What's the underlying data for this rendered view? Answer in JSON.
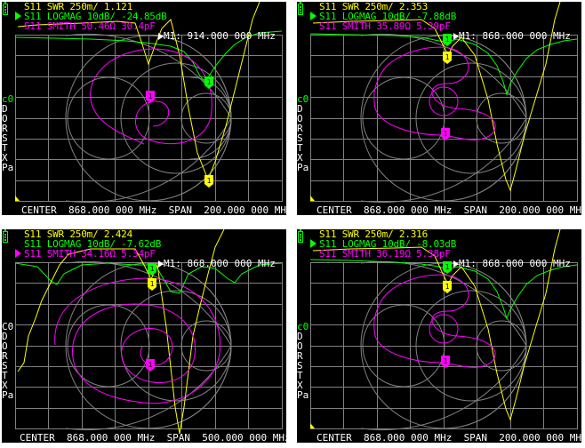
{
  "screens": [
    {
      "id": "top-left",
      "trace_swr": "S11 SWR 250m/ 1.121",
      "trace_logmag": "S11 LOGMAG 10dB/ -24.85dB",
      "trace_smith": "S11 SMITH 50.46Ω 30.4pF",
      "marker_readout": "M1: 914.000 000 MHz",
      "footer": "CENTER  868.000 000 MHz  SPAN  200.000 000 MHz",
      "sidebar": [
        "c0",
        "D",
        "O",
        "R",
        "S",
        "T",
        "X",
        "Pa"
      ],
      "marker_label": "1"
    },
    {
      "id": "top-right",
      "trace_swr": "S11 SWR 250m/ 2.353",
      "trace_logmag": "S11 LOGMAG 10dB/ -7.88dB",
      "trace_smith": "S11 SMITH 35.89Ω 5.39pF",
      "marker_readout": "M1: 868.000 000 MHz",
      "footer": "CENTER  868.000 000 MHz  SPAN  200.000 000 MHz",
      "sidebar": [
        "c0",
        "D",
        "O",
        "R",
        "S",
        "T",
        "X",
        "Pa"
      ],
      "marker_label": "1"
    },
    {
      "id": "bottom-left",
      "trace_swr": "S11 SWR 250m/ 2.424",
      "trace_logmag": "S11 LOGMAG 10dB/ -7.62dB",
      "trace_smith": "S11 SMITH 34.16Ω 5.34pF",
      "marker_readout": "M1: 868.000 000 MHz",
      "footer": "CENTER  868.000 000 MHz  SPAN  500.000 000 MHz",
      "sidebar": [
        "C0",
        "D",
        "O",
        "R",
        "S",
        "T",
        "X",
        "Pa"
      ],
      "marker_label": "1"
    },
    {
      "id": "bottom-right",
      "trace_swr": "S11 SWR 250m/ 2.316",
      "trace_logmag": "S11 LOGMAG 10dB/ -8.03dB",
      "trace_smith": "S11 SMITH 36.19Ω 5.38pF",
      "marker_readout": "M1: 868.000 000 MHz",
      "footer": "CENTER  868.000 000 MHz  SPAN  200.000 000 MHz",
      "sidebar": [
        "c0",
        "D",
        "O",
        "R",
        "S",
        "T",
        "X",
        "Pa"
      ],
      "marker_label": "1"
    }
  ],
  "colors": {
    "swr": "#ffff00",
    "logmag": "#00ff00",
    "smith": "#ff00ff",
    "grid": "#808080",
    "text": "#ffffff",
    "background": "#000000"
  },
  "icons": [
    "battery-icon",
    "marker-triangle-icon",
    "active-trace-arrow-icon"
  ]
}
